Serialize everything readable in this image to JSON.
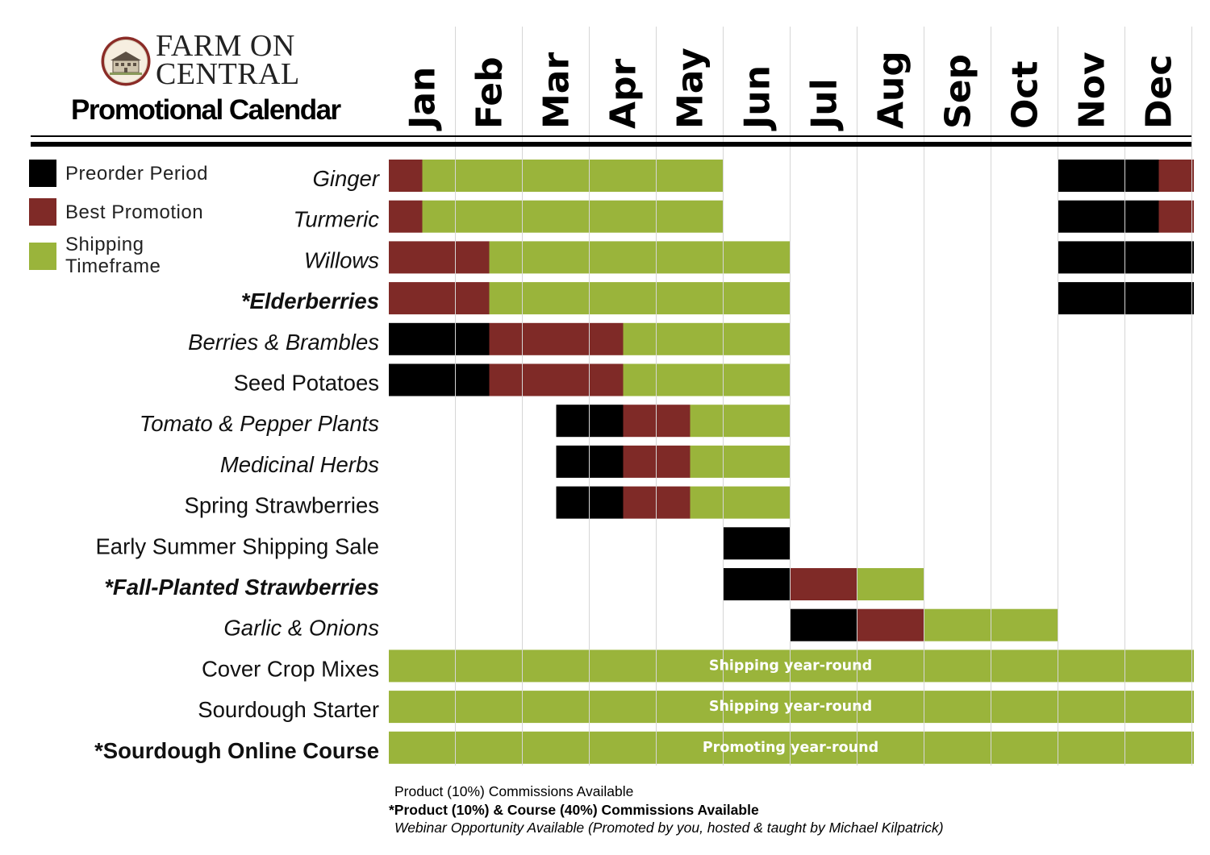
{
  "header": {
    "brand_line1": "FARM ON",
    "brand_line2": "CENTRAL",
    "subtitle": "Promotional Calendar",
    "logo_icon": "farmhouse-seal-icon"
  },
  "legend": [
    {
      "label": "Preorder Period",
      "color": "#000000"
    },
    {
      "label": "Best Promotion",
      "color": "#7f2a27"
    },
    {
      "label": "Shipping Timeframe",
      "color": "#9ab43b"
    }
  ],
  "chart_data": {
    "type": "gantt",
    "months": [
      "Jan",
      "Feb",
      "Mar",
      "Apr",
      "May",
      "Jun",
      "Jul",
      "Aug",
      "Sep",
      "Oct",
      "Nov",
      "Dec"
    ],
    "phase_colors": {
      "preorder": "#000000",
      "best": "#7f2a27",
      "shipping": "#9ab43b"
    },
    "rows": [
      {
        "label": "Ginger",
        "italic": true,
        "bold": false,
        "segments": [
          {
            "phase": "best",
            "start": 0,
            "end": 0.5
          },
          {
            "phase": "shipping",
            "start": 0.5,
            "end": 5
          },
          {
            "phase": "preorder",
            "start": 10,
            "end": 11.5
          },
          {
            "phase": "best",
            "start": 11.5,
            "end": 12
          }
        ]
      },
      {
        "label": "Turmeric",
        "italic": true,
        "bold": false,
        "segments": [
          {
            "phase": "best",
            "start": 0,
            "end": 0.5
          },
          {
            "phase": "shipping",
            "start": 0.5,
            "end": 5
          },
          {
            "phase": "preorder",
            "start": 10,
            "end": 11.5
          },
          {
            "phase": "best",
            "start": 11.5,
            "end": 12
          }
        ]
      },
      {
        "label": "Willows",
        "italic": true,
        "bold": false,
        "segments": [
          {
            "phase": "best",
            "start": 0,
            "end": 1.5
          },
          {
            "phase": "shipping",
            "start": 1.5,
            "end": 6
          },
          {
            "phase": "preorder",
            "start": 10,
            "end": 12
          }
        ]
      },
      {
        "label": "*Elderberries",
        "italic": true,
        "bold": true,
        "segments": [
          {
            "phase": "best",
            "start": 0,
            "end": 1.5
          },
          {
            "phase": "shipping",
            "start": 1.5,
            "end": 6
          },
          {
            "phase": "preorder",
            "start": 10,
            "end": 12
          }
        ]
      },
      {
        "label": "Berries & Brambles",
        "italic": true,
        "bold": false,
        "segments": [
          {
            "phase": "preorder",
            "start": 0,
            "end": 1.5
          },
          {
            "phase": "best",
            "start": 1.5,
            "end": 3.5
          },
          {
            "phase": "shipping",
            "start": 3.5,
            "end": 6
          }
        ]
      },
      {
        "label": "Seed Potatoes",
        "italic": false,
        "bold": false,
        "segments": [
          {
            "phase": "preorder",
            "start": 0,
            "end": 1.5
          },
          {
            "phase": "best",
            "start": 1.5,
            "end": 3.5
          },
          {
            "phase": "shipping",
            "start": 3.5,
            "end": 6
          }
        ]
      },
      {
        "label": "Tomato & Pepper Plants",
        "italic": true,
        "bold": false,
        "segments": [
          {
            "phase": "preorder",
            "start": 2.5,
            "end": 3.5
          },
          {
            "phase": "best",
            "start": 3.5,
            "end": 4.5
          },
          {
            "phase": "shipping",
            "start": 4.5,
            "end": 6
          }
        ]
      },
      {
        "label": "Medicinal Herbs",
        "italic": true,
        "bold": false,
        "segments": [
          {
            "phase": "preorder",
            "start": 2.5,
            "end": 3.5
          },
          {
            "phase": "best",
            "start": 3.5,
            "end": 4.5
          },
          {
            "phase": "shipping",
            "start": 4.5,
            "end": 6
          }
        ]
      },
      {
        "label": "Spring Strawberries",
        "italic": false,
        "bold": false,
        "segments": [
          {
            "phase": "preorder",
            "start": 2.5,
            "end": 3.5
          },
          {
            "phase": "best",
            "start": 3.5,
            "end": 4.5
          },
          {
            "phase": "shipping",
            "start": 4.5,
            "end": 6
          }
        ]
      },
      {
        "label": "Early Summer Shipping Sale",
        "italic": false,
        "bold": false,
        "segments": [
          {
            "phase": "preorder",
            "start": 5,
            "end": 6
          }
        ]
      },
      {
        "label": "*Fall-Planted Strawberries",
        "italic": true,
        "bold": true,
        "segments": [
          {
            "phase": "preorder",
            "start": 5,
            "end": 6
          },
          {
            "phase": "best",
            "start": 6,
            "end": 7
          },
          {
            "phase": "shipping",
            "start": 7,
            "end": 8
          }
        ]
      },
      {
        "label": "Garlic & Onions",
        "italic": true,
        "bold": false,
        "segments": [
          {
            "phase": "preorder",
            "start": 6,
            "end": 7
          },
          {
            "phase": "best",
            "start": 7,
            "end": 8
          },
          {
            "phase": "shipping",
            "start": 8,
            "end": 10
          }
        ]
      },
      {
        "label": "Cover Crop Mixes",
        "italic": false,
        "bold": false,
        "segments": [
          {
            "phase": "shipping",
            "start": 0,
            "end": 12,
            "text": "Shipping year-round"
          }
        ]
      },
      {
        "label": "Sourdough Starter",
        "italic": false,
        "bold": false,
        "segments": [
          {
            "phase": "shipping",
            "start": 0,
            "end": 12,
            "text": "Shipping year-round"
          }
        ]
      },
      {
        "label": "*Sourdough Online Course",
        "italic": false,
        "bold": true,
        "segments": [
          {
            "phase": "shipping",
            "start": 0,
            "end": 12,
            "text": "Promoting year-round"
          }
        ]
      }
    ]
  },
  "footnotes": {
    "line1": "Product (10%) Commissions Available",
    "line2": "*Product (10%) & Course (40%) Commissions Available",
    "line3": "Webinar Opportunity Available (Promoted by you, hosted & taught by Michael Kilpatrick)"
  }
}
